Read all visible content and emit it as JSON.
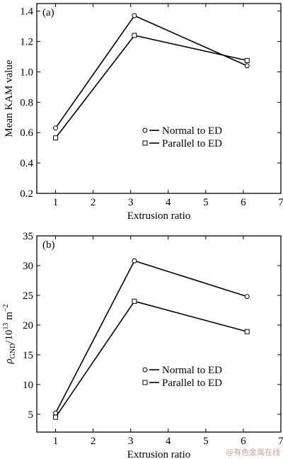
{
  "chart_data": [
    {
      "type": "line",
      "panel_label": "(a)",
      "xlabel": "Extrusion ratio",
      "ylabel": "Mean KAM value",
      "xlim": [
        0.5,
        7
      ],
      "ylim": [
        0.2,
        1.45
      ],
      "xticks": [
        "1",
        "2",
        "3",
        "4",
        "5",
        "6",
        "7"
      ],
      "yticks": [
        "0.2",
        "0.4",
        "0.6",
        "0.8",
        "1.0",
        "1.2",
        "1.4"
      ],
      "legend_position": "center-right",
      "series": [
        {
          "name": "Normal to ED",
          "marker": "circle",
          "x": [
            1,
            3.1,
            6.1
          ],
          "y": [
            0.63,
            1.37,
            1.04
          ]
        },
        {
          "name": "Parallel to ED",
          "marker": "square",
          "x": [
            1,
            3.1,
            6.1
          ],
          "y": [
            0.565,
            1.24,
            1.075
          ]
        }
      ]
    },
    {
      "type": "line",
      "panel_label": "(b)",
      "xlabel": "Extrusion ratio",
      "ylabel_main": "ρ",
      "ylabel_sub": "GND",
      "ylabel_mid": "/10",
      "ylabel_sup1": "13",
      "ylabel_unit": " m",
      "ylabel_sup2": "−2",
      "xlim": [
        0.5,
        7
      ],
      "ylim": [
        2,
        35
      ],
      "xticks": [
        "1",
        "2",
        "3",
        "4",
        "5",
        "6",
        "7"
      ],
      "yticks": [
        "5",
        "10",
        "15",
        "20",
        "25",
        "30",
        "35"
      ],
      "legend_position": "lower-right",
      "series": [
        {
          "name": "Normal to ED",
          "marker": "circle",
          "x": [
            1,
            3.1,
            6.1
          ],
          "y": [
            5.2,
            30.8,
            24.8
          ]
        },
        {
          "name": "Parallel to ED",
          "marker": "square",
          "x": [
            1,
            3.1,
            6.1
          ],
          "y": [
            4.5,
            24.0,
            18.9
          ]
        }
      ]
    }
  ],
  "watermark": "@有色金属在线"
}
